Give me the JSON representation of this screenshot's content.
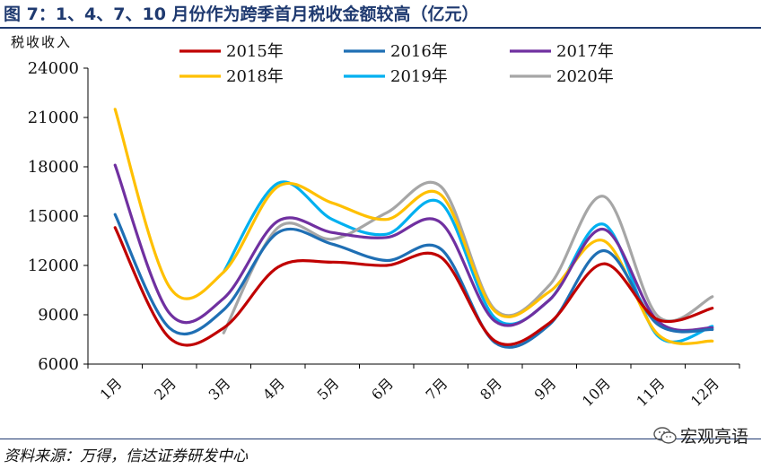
{
  "title": "图 7：1、4、7、10 月份作为跨季首月税收金额较高（亿元）",
  "source": "资料来源：万得，信达证券研发中心",
  "watermark": "宏观亮语",
  "watermark_icon": "wechat-icon",
  "chart_data": {
    "type": "line",
    "title": "图 7：1、4、7、10 月份作为跨季首月税收金额较高（亿元）",
    "ylabel": "税收收入",
    "xlabel": "",
    "ylim": [
      6000,
      24000
    ],
    "yticks": [
      6000,
      9000,
      12000,
      15000,
      18000,
      21000,
      24000
    ],
    "categories": [
      "1月",
      "2月",
      "3月",
      "4月",
      "5月",
      "6月",
      "7月",
      "8月",
      "9月",
      "10月",
      "11月",
      "12月"
    ],
    "grid": false,
    "legend_position": "top",
    "series": [
      {
        "name": "2015年",
        "color": "#c00000",
        "values": [
          14300,
          7600,
          8200,
          11900,
          12200,
          12000,
          12500,
          7400,
          8500,
          12100,
          8700,
          9400
        ]
      },
      {
        "name": "2016年",
        "color": "#1f6fb4",
        "values": [
          15100,
          8200,
          9300,
          14000,
          13300,
          12300,
          13000,
          7300,
          8400,
          12900,
          8400,
          8100
        ]
      },
      {
        "name": "2017年",
        "color": "#7030a0",
        "values": [
          18100,
          9100,
          10000,
          14700,
          14000,
          13700,
          14600,
          8600,
          9900,
          14200,
          8600,
          8200
        ]
      },
      {
        "name": "2018年",
        "color": "#ffc000",
        "values": [
          21500,
          10700,
          11600,
          16800,
          15800,
          14800,
          16300,
          9200,
          10400,
          13500,
          7800,
          7400
        ]
      },
      {
        "name": "2019年",
        "color": "#00b0f0",
        "values": [
          null,
          null,
          11600,
          17000,
          14800,
          13900,
          15800,
          8800,
          9900,
          14500,
          7700,
          8300
        ]
      },
      {
        "name": "2020年",
        "color": "#a6a6a6",
        "values": [
          null,
          null,
          7900,
          14300,
          13600,
          15200,
          16800,
          9300,
          10800,
          16200,
          8900,
          10100
        ]
      }
    ]
  }
}
